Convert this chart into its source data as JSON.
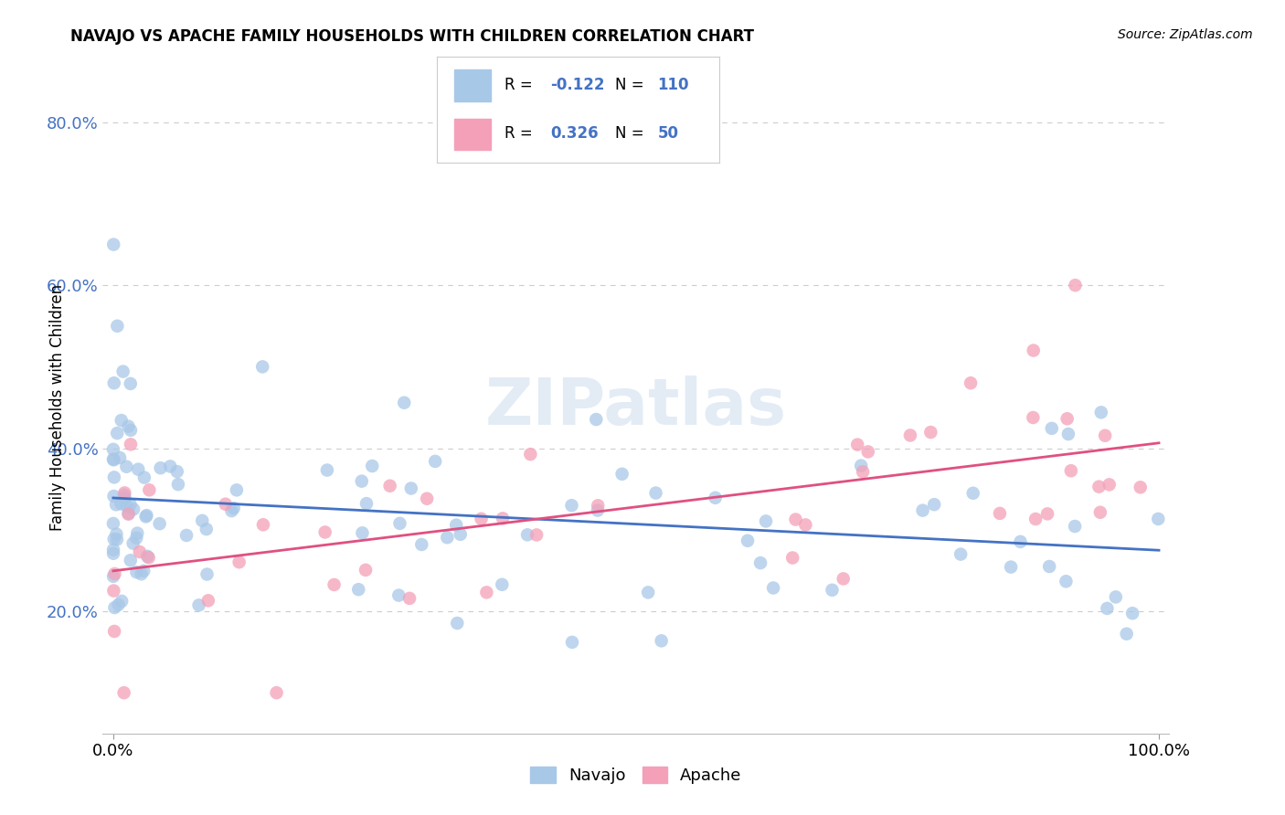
{
  "title": "NAVAJO VS APACHE FAMILY HOUSEHOLDS WITH CHILDREN CORRELATION CHART",
  "source": "Source: ZipAtlas.com",
  "ylabel": "Family Households with Children",
  "navajo_R": -0.122,
  "navajo_N": 110,
  "apache_R": 0.326,
  "apache_N": 50,
  "watermark": "ZIPatlas",
  "navajo_color": "#a8c8e8",
  "apache_color": "#f4a0b8",
  "navajo_line_color": "#4472c4",
  "apache_line_color": "#e05080",
  "legend_text_color": "#4472c4",
  "grid_color": "#cccccc",
  "background_color": "#ffffff",
  "yticks": [
    20,
    40,
    60,
    80
  ],
  "xlim": [
    0,
    100
  ],
  "ylim": [
    5,
    85
  ]
}
